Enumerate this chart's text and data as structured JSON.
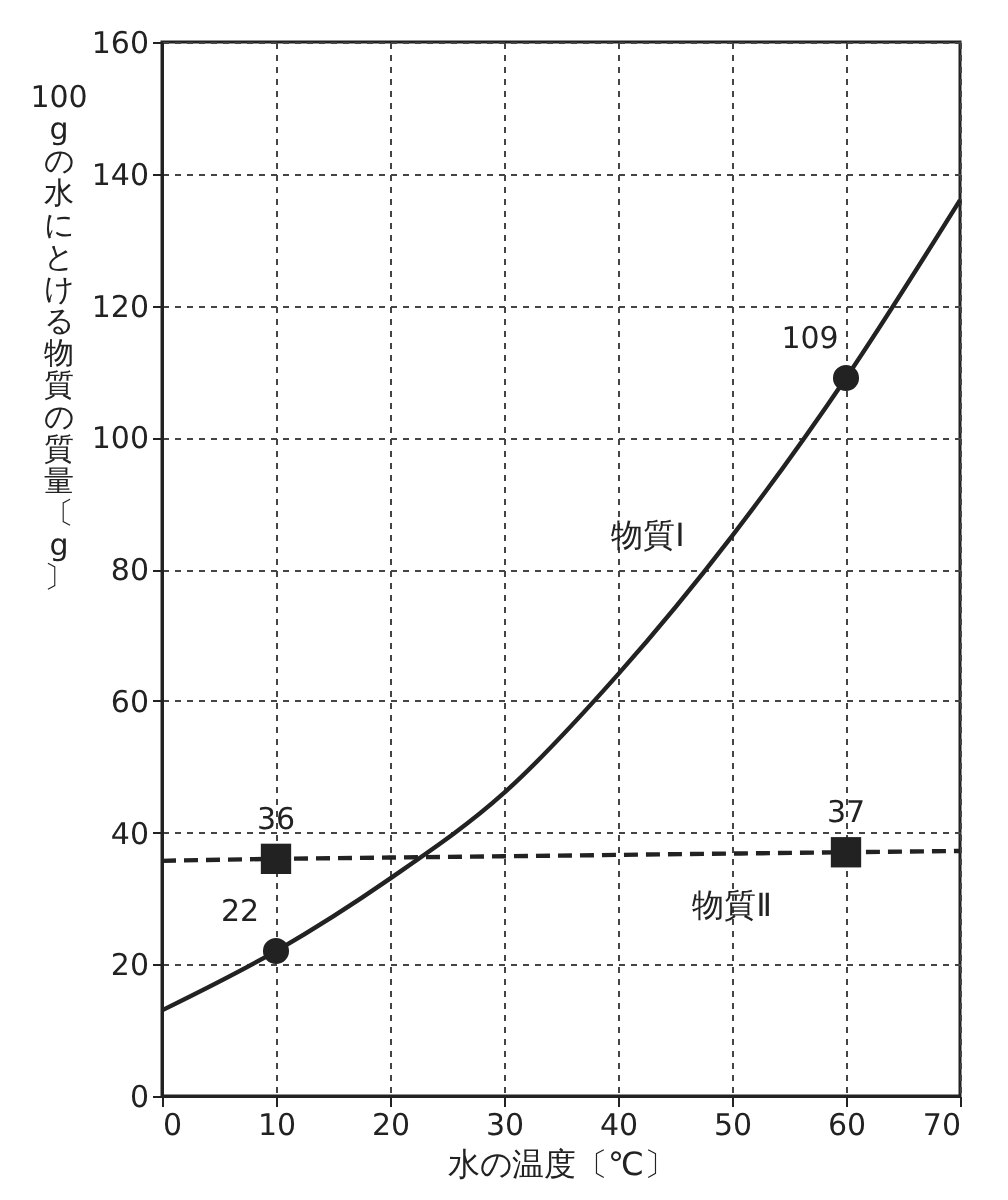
{
  "chart_data": {
    "type": "line",
    "xlabel": "水の温度〔℃〕",
    "ylabel": "100gの水にとける物質の質量〔g〕",
    "xlim": [
      0,
      70
    ],
    "xticks": [
      0,
      10,
      20,
      30,
      40,
      50,
      60,
      70
    ],
    "ylim": [
      0,
      160
    ],
    "yticks": [
      0,
      20,
      40,
      60,
      80,
      100,
      120,
      140,
      160
    ],
    "grid": true,
    "series": [
      {
        "name": "物質Ⅰ",
        "line_style": "solid",
        "marker": "none",
        "color": "#222222",
        "x": [
          0,
          10,
          20,
          30,
          40,
          50,
          60,
          70
        ],
        "values": [
          13,
          22,
          33,
          46,
          64,
          85,
          109,
          136
        ]
      },
      {
        "name": "物質Ⅱ",
        "line_style": "dashed",
        "marker": "none",
        "color": "#222222",
        "x": [
          0,
          10,
          20,
          30,
          40,
          50,
          60,
          70
        ],
        "values": [
          35.7,
          36,
          36.2,
          36.4,
          36.6,
          36.8,
          37,
          37.2
        ]
      },
      {
        "type": "scatter",
        "marker": "circle",
        "color": "#222222",
        "x": [
          10,
          60
        ],
        "values": [
          22,
          109
        ],
        "value_labels": [
          "22",
          "109"
        ]
      },
      {
        "type": "scatter",
        "marker": "square",
        "color": "#222222",
        "x": [
          10,
          60
        ],
        "values": [
          36,
          37
        ],
        "value_labels": [
          "36",
          "37"
        ]
      }
    ]
  }
}
